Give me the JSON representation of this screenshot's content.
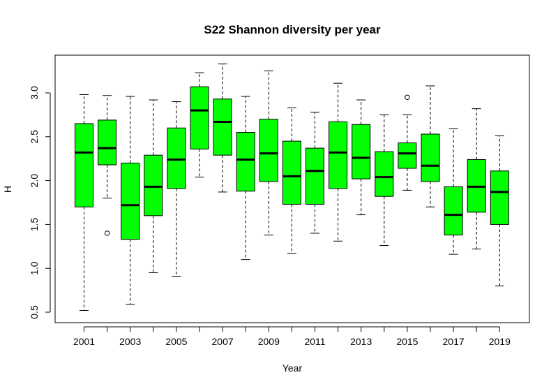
{
  "chart_data": {
    "type": "boxplot",
    "title": "S22 Shannon diversity per year",
    "xlabel": "Year",
    "ylabel": "H",
    "ylim": [
      0.42,
      3.38
    ],
    "yticks": [
      "0.5",
      "1.0",
      "1.5",
      "2.0",
      "2.5",
      "3.0"
    ],
    "categories": [
      "2001",
      "2002",
      "2003",
      "2004",
      "2005",
      "2006",
      "2007",
      "2008",
      "2009",
      "2010",
      "2011",
      "2012",
      "2013",
      "2014",
      "2015",
      "2016",
      "2017",
      "2018",
      "2019"
    ],
    "xtick_labels": [
      "2001",
      "2003",
      "2005",
      "2007",
      "2009",
      "2011",
      "2013",
      "2015",
      "2017",
      "2019"
    ],
    "box_color": "#00ff00",
    "boxes": [
      {
        "year": "2001",
        "min": 0.52,
        "q1": 1.7,
        "median": 2.32,
        "q3": 2.65,
        "max": 2.98,
        "outliers": []
      },
      {
        "year": "2002",
        "min": 1.8,
        "q1": 2.18,
        "median": 2.37,
        "q3": 2.69,
        "max": 2.97,
        "outliers": [
          1.4
        ]
      },
      {
        "year": "2003",
        "min": 0.59,
        "q1": 1.33,
        "median": 1.72,
        "q3": 2.2,
        "max": 2.96,
        "outliers": []
      },
      {
        "year": "2004",
        "min": 0.95,
        "q1": 1.6,
        "median": 1.93,
        "q3": 2.29,
        "max": 2.92,
        "outliers": []
      },
      {
        "year": "2005",
        "min": 0.91,
        "q1": 1.91,
        "median": 2.24,
        "q3": 2.6,
        "max": 2.9,
        "outliers": []
      },
      {
        "year": "2006",
        "min": 2.04,
        "q1": 2.36,
        "median": 2.8,
        "q3": 3.07,
        "max": 3.23,
        "outliers": []
      },
      {
        "year": "2007",
        "min": 1.87,
        "q1": 2.29,
        "median": 2.67,
        "q3": 2.93,
        "max": 3.33,
        "outliers": []
      },
      {
        "year": "2008",
        "min": 1.1,
        "q1": 1.88,
        "median": 2.24,
        "q3": 2.55,
        "max": 2.96,
        "outliers": []
      },
      {
        "year": "2009",
        "min": 1.38,
        "q1": 1.99,
        "median": 2.31,
        "q3": 2.7,
        "max": 3.25,
        "outliers": []
      },
      {
        "year": "2010",
        "min": 1.17,
        "q1": 1.73,
        "median": 2.05,
        "q3": 2.45,
        "max": 2.83,
        "outliers": []
      },
      {
        "year": "2011",
        "min": 1.4,
        "q1": 1.73,
        "median": 2.11,
        "q3": 2.37,
        "max": 2.78,
        "outliers": []
      },
      {
        "year": "2012",
        "min": 1.31,
        "q1": 1.91,
        "median": 2.32,
        "q3": 2.67,
        "max": 3.11,
        "outliers": []
      },
      {
        "year": "2013",
        "min": 1.61,
        "q1": 2.02,
        "median": 2.26,
        "q3": 2.64,
        "max": 2.92,
        "outliers": []
      },
      {
        "year": "2014",
        "min": 1.26,
        "q1": 1.82,
        "median": 2.04,
        "q3": 2.33,
        "max": 2.75,
        "outliers": []
      },
      {
        "year": "2015",
        "min": 1.89,
        "q1": 2.14,
        "median": 2.31,
        "q3": 2.43,
        "max": 2.75,
        "outliers": [
          2.95
        ]
      },
      {
        "year": "2016",
        "min": 1.7,
        "q1": 1.99,
        "median": 2.17,
        "q3": 2.53,
        "max": 3.08,
        "outliers": []
      },
      {
        "year": "2017",
        "min": 1.16,
        "q1": 1.38,
        "median": 1.61,
        "q3": 1.93,
        "max": 2.59,
        "outliers": []
      },
      {
        "year": "2018",
        "min": 1.22,
        "q1": 1.64,
        "median": 1.93,
        "q3": 2.24,
        "max": 2.82,
        "outliers": []
      },
      {
        "year": "2019",
        "min": 0.8,
        "q1": 1.5,
        "median": 1.87,
        "q3": 2.11,
        "max": 2.51,
        "outliers": []
      }
    ]
  }
}
